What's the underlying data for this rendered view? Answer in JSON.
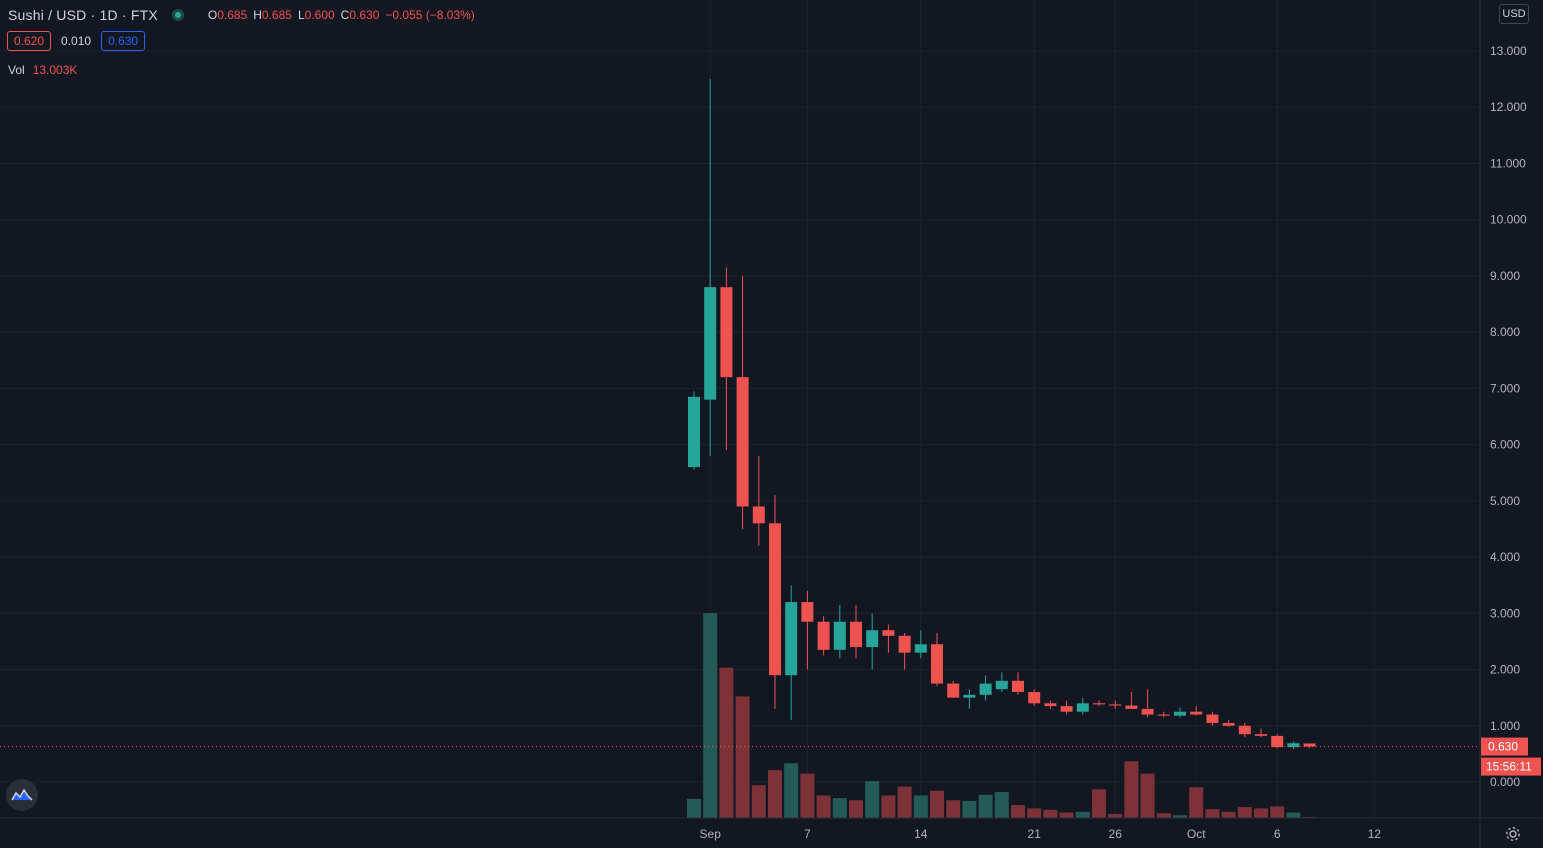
{
  "header": {
    "symbol": "Sushi / USD · 1D · FTX",
    "ohlc": {
      "o_label": "O",
      "o": "0.685",
      "h_label": "H",
      "h": "0.685",
      "l_label": "L",
      "l": "0.600",
      "c_label": "C",
      "c": "0.630",
      "change": "−0.055 (−8.03%)"
    },
    "bid": "0.620",
    "spread": "0.010",
    "ask": "0.630",
    "vol_label": "Vol",
    "vol_value": "13.003K",
    "currency_button": "USD",
    "status_icon": "market-status-dot"
  },
  "price_badge": "0.630",
  "countdown": "15:56:11",
  "colors": {
    "up": "#26a69a",
    "down": "#ef5350",
    "up_volume": "#245b56",
    "down_volume": "#7c3236",
    "background": "#131722",
    "grid": "#1e222d",
    "text": "#b2b5be"
  },
  "chart_data": {
    "type": "candlestick",
    "ylim": [
      -0.2,
      13.2
    ],
    "y_ticks": [
      "13.000",
      "12.000",
      "11.000",
      "10.000",
      "9.000",
      "8.000",
      "7.000",
      "6.000",
      "5.000",
      "4.000",
      "3.000",
      "2.000",
      "1.000",
      "0.000"
    ],
    "x_tick_labels": [
      {
        "label": "Sep",
        "index": 1
      },
      {
        "label": "7",
        "index": 7
      },
      {
        "label": "14",
        "index": 14
      },
      {
        "label": "21",
        "index": 21
      },
      {
        "label": "26",
        "index": 26
      },
      {
        "label": "Oct",
        "index": 31
      },
      {
        "label": "6",
        "index": 36
      },
      {
        "label": "12",
        "index": 42
      }
    ],
    "last_price": 0.63,
    "candles": [
      {
        "o": 5.6,
        "h": 6.95,
        "l": 5.55,
        "c": 6.85,
        "v": 280
      },
      {
        "o": 6.8,
        "h": 12.5,
        "l": 5.8,
        "c": 8.8,
        "v": 3000
      },
      {
        "o": 8.8,
        "h": 9.15,
        "l": 5.9,
        "c": 7.2,
        "v": 2200
      },
      {
        "o": 7.2,
        "h": 9.0,
        "l": 4.5,
        "c": 4.9,
        "v": 1780
      },
      {
        "o": 4.9,
        "h": 5.8,
        "l": 4.2,
        "c": 4.6,
        "v": 480
      },
      {
        "o": 4.6,
        "h": 5.1,
        "l": 1.3,
        "c": 1.9,
        "v": 700
      },
      {
        "o": 1.9,
        "h": 3.5,
        "l": 1.1,
        "c": 3.2,
        "v": 800
      },
      {
        "o": 3.2,
        "h": 3.4,
        "l": 2.0,
        "c": 2.85,
        "v": 650
      },
      {
        "o": 2.85,
        "h": 2.95,
        "l": 2.25,
        "c": 2.35,
        "v": 330
      },
      {
        "o": 2.35,
        "h": 3.15,
        "l": 2.2,
        "c": 2.85,
        "v": 290
      },
      {
        "o": 2.85,
        "h": 3.15,
        "l": 2.2,
        "c": 2.4,
        "v": 260
      },
      {
        "o": 2.4,
        "h": 3.0,
        "l": 2.0,
        "c": 2.7,
        "v": 540
      },
      {
        "o": 2.7,
        "h": 2.8,
        "l": 2.3,
        "c": 2.6,
        "v": 330
      },
      {
        "o": 2.6,
        "h": 2.65,
        "l": 2.0,
        "c": 2.3,
        "v": 460
      },
      {
        "o": 2.3,
        "h": 2.7,
        "l": 2.2,
        "c": 2.45,
        "v": 330
      },
      {
        "o": 2.45,
        "h": 2.65,
        "l": 1.7,
        "c": 1.75,
        "v": 400
      },
      {
        "o": 1.75,
        "h": 1.8,
        "l": 1.5,
        "c": 1.5,
        "v": 260
      },
      {
        "o": 1.5,
        "h": 1.65,
        "l": 1.3,
        "c": 1.55,
        "v": 250
      },
      {
        "o": 1.55,
        "h": 1.9,
        "l": 1.45,
        "c": 1.75,
        "v": 340
      },
      {
        "o": 1.65,
        "h": 1.95,
        "l": 1.6,
        "c": 1.8,
        "v": 380
      },
      {
        "o": 1.8,
        "h": 1.95,
        "l": 1.55,
        "c": 1.6,
        "v": 190
      },
      {
        "o": 1.6,
        "h": 1.65,
        "l": 1.35,
        "c": 1.4,
        "v": 140
      },
      {
        "o": 1.4,
        "h": 1.45,
        "l": 1.3,
        "c": 1.35,
        "v": 120
      },
      {
        "o": 1.35,
        "h": 1.45,
        "l": 1.2,
        "c": 1.25,
        "v": 80
      },
      {
        "o": 1.25,
        "h": 1.5,
        "l": 1.2,
        "c": 1.4,
        "v": 90
      },
      {
        "o": 1.4,
        "h": 1.45,
        "l": 1.35,
        "c": 1.38,
        "v": 420
      },
      {
        "o": 1.38,
        "h": 1.45,
        "l": 1.3,
        "c": 1.36,
        "v": 60
      },
      {
        "o": 1.36,
        "h": 1.6,
        "l": 1.3,
        "c": 1.3,
        "v": 830
      },
      {
        "o": 1.3,
        "h": 1.65,
        "l": 1.15,
        "c": 1.2,
        "v": 650
      },
      {
        "o": 1.2,
        "h": 1.25,
        "l": 1.15,
        "c": 1.18,
        "v": 70
      },
      {
        "o": 1.18,
        "h": 1.32,
        "l": 1.15,
        "c": 1.25,
        "v": 40
      },
      {
        "o": 1.25,
        "h": 1.35,
        "l": 1.18,
        "c": 1.2,
        "v": 450
      },
      {
        "o": 1.2,
        "h": 1.25,
        "l": 1.0,
        "c": 1.05,
        "v": 130
      },
      {
        "o": 1.05,
        "h": 1.1,
        "l": 0.98,
        "c": 1.0,
        "v": 90
      },
      {
        "o": 1.0,
        "h": 1.05,
        "l": 0.8,
        "c": 0.85,
        "v": 160
      },
      {
        "o": 0.85,
        "h": 0.95,
        "l": 0.8,
        "c": 0.82,
        "v": 140
      },
      {
        "o": 0.82,
        "h": 0.85,
        "l": 0.6,
        "c": 0.62,
        "v": 170
      },
      {
        "o": 0.62,
        "h": 0.72,
        "l": 0.58,
        "c": 0.69,
        "v": 80
      },
      {
        "o": 0.685,
        "h": 0.685,
        "l": 0.6,
        "c": 0.63,
        "v": 13
      }
    ]
  }
}
